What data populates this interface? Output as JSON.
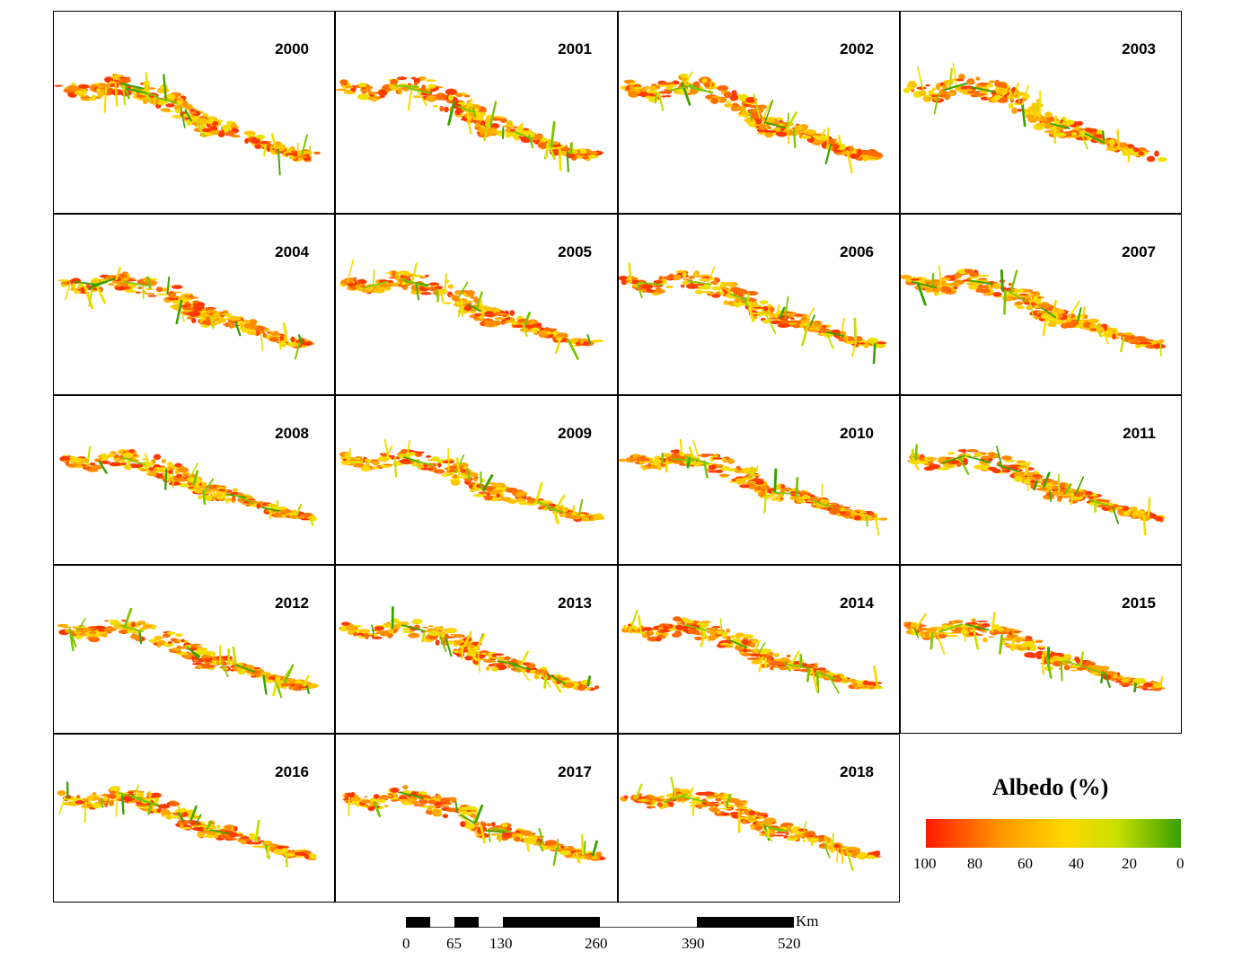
{
  "panels": [
    {
      "year": "2000"
    },
    {
      "year": "2001"
    },
    {
      "year": "2002"
    },
    {
      "year": "2003"
    },
    {
      "year": "2004"
    },
    {
      "year": "2005"
    },
    {
      "year": "2006"
    },
    {
      "year": "2007"
    },
    {
      "year": "2008"
    },
    {
      "year": "2009"
    },
    {
      "year": "2010"
    },
    {
      "year": "2011"
    },
    {
      "year": "2012"
    },
    {
      "year": "2013"
    },
    {
      "year": "2014"
    },
    {
      "year": "2015"
    },
    {
      "year": "2016"
    },
    {
      "year": "2017"
    },
    {
      "year": "2018"
    }
  ],
  "legend": {
    "title": "Albedo (%)",
    "ticks": [
      "100",
      "80",
      "60",
      "40",
      "20",
      "0"
    ],
    "colors": {
      "high": "#ff1a00",
      "mid_high": "#ff9a00",
      "mid": "#ffd800",
      "mid_low": "#c8e000",
      "low": "#3aa000"
    }
  },
  "scalebar": {
    "unit": "Km",
    "labels": [
      "0",
      "65",
      "130",
      "260",
      "390",
      "520"
    ]
  }
}
